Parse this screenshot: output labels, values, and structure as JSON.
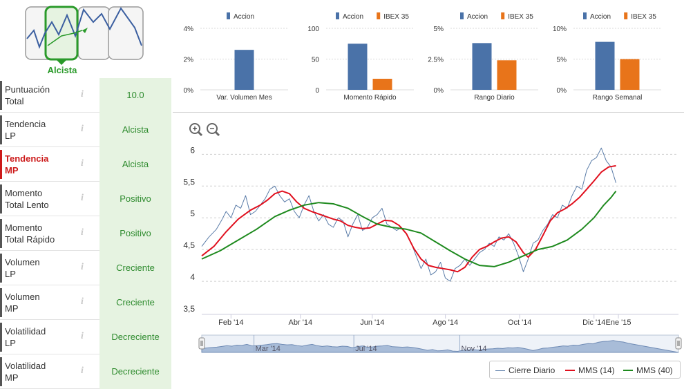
{
  "trend_badge": {
    "label": "Alcista",
    "icon": "trend-chart-icon"
  },
  "indicators": [
    {
      "label_1": "Puntuación",
      "label_2": "Total",
      "value": "10.0",
      "active": false
    },
    {
      "label_1": "Tendencia",
      "label_2": "LP",
      "value": "Alcista",
      "active": false
    },
    {
      "label_1": "Tendencia",
      "label_2": "MP",
      "value": "Alcista",
      "active": true
    },
    {
      "label_1": "Momento",
      "label_2": "Total Lento",
      "value": "Positivo",
      "active": false
    },
    {
      "label_1": "Momento",
      "label_2": "Total Rápido",
      "value": "Positivo",
      "active": false
    },
    {
      "label_1": "Volumen",
      "label_2": "LP",
      "value": "Creciente",
      "active": false
    },
    {
      "label_1": "Volumen",
      "label_2": "MP",
      "value": "Creciente",
      "active": false
    },
    {
      "label_1": "Volatilidad",
      "label_2": "LP",
      "value": "Decreciente",
      "active": false
    },
    {
      "label_1": "Volatilidad",
      "label_2": "MP",
      "value": "Decreciente",
      "active": false
    }
  ],
  "info_glyph": "i",
  "colors": {
    "accion": "#4a72a8",
    "ibex": "#e8741a",
    "green_text": "#2e8b2e",
    "green_bg": "#e6f3e1",
    "active_red": "#cc1a1a",
    "mms14": "#e0101e",
    "mms40": "#1e8a1e",
    "cierre": "#5a7ca8"
  },
  "chart_data": [
    {
      "type": "bar",
      "legend": [
        "Accion"
      ],
      "categories": [
        "Var. Volumen Mes"
      ],
      "series": [
        {
          "name": "Accion",
          "values": [
            2.6
          ]
        }
      ],
      "y_ticks": [
        "4%",
        "2%",
        "0%"
      ],
      "ylim": [
        0,
        4
      ]
    },
    {
      "type": "bar",
      "legend": [
        "Accion",
        "IBEX 35"
      ],
      "categories": [
        "Momento Rápido"
      ],
      "series": [
        {
          "name": "Accion",
          "values": [
            75
          ]
        },
        {
          "name": "IBEX 35",
          "values": [
            18
          ]
        }
      ],
      "y_ticks": [
        "100",
        "50",
        "0"
      ],
      "ylim": [
        0,
        100
      ]
    },
    {
      "type": "bar",
      "legend": [
        "Accion",
        "IBEX 35"
      ],
      "categories": [
        "Rango Diario"
      ],
      "series": [
        {
          "name": "Accion",
          "values": [
            3.8
          ]
        },
        {
          "name": "IBEX 35",
          "values": [
            2.4
          ]
        }
      ],
      "y_ticks": [
        "5%",
        "2.5%",
        "0%"
      ],
      "ylim": [
        0,
        5
      ]
    },
    {
      "type": "bar",
      "legend": [
        "Accion",
        "IBEX 35"
      ],
      "categories": [
        "Rango Semanal"
      ],
      "series": [
        {
          "name": "Accion",
          "values": [
            7.8
          ]
        },
        {
          "name": "IBEX 35",
          "values": [
            5.0
          ]
        }
      ],
      "y_ticks": [
        "10%",
        "5%",
        "0%"
      ],
      "ylim": [
        0,
        10
      ]
    },
    {
      "type": "line",
      "x_ticks": [
        "Feb '14",
        "Abr '14",
        "Jun '14",
        "Ago '14",
        "Oct '14",
        "Dic '14",
        "Ene '15"
      ],
      "y_ticks": [
        "6",
        "5,5",
        "5",
        "4,5",
        "4",
        "3,5"
      ],
      "ylim": [
        3.5,
        6.2
      ],
      "x_range": [
        0,
        380
      ],
      "x_tick_pos": [
        24,
        81,
        140,
        200,
        261,
        322,
        342
      ],
      "series": [
        {
          "name": "Cierre Diario",
          "values": [
            [
              0,
              4.55
            ],
            [
              6,
              4.7
            ],
            [
              12,
              4.82
            ],
            [
              16,
              4.95
            ],
            [
              20,
              5.1
            ],
            [
              24,
              5.0
            ],
            [
              28,
              5.2
            ],
            [
              32,
              5.15
            ],
            [
              36,
              5.35
            ],
            [
              40,
              5.05
            ],
            [
              44,
              5.1
            ],
            [
              48,
              5.2
            ],
            [
              52,
              5.3
            ],
            [
              56,
              5.45
            ],
            [
              60,
              5.5
            ],
            [
              64,
              5.35
            ],
            [
              68,
              5.25
            ],
            [
              72,
              5.3
            ],
            [
              76,
              5.1
            ],
            [
              80,
              5.0
            ],
            [
              84,
              5.2
            ],
            [
              88,
              5.35
            ],
            [
              92,
              5.1
            ],
            [
              96,
              4.95
            ],
            [
              100,
              5.05
            ],
            [
              104,
              4.9
            ],
            [
              108,
              4.85
            ],
            [
              112,
              5.0
            ],
            [
              116,
              4.95
            ],
            [
              120,
              4.7
            ],
            [
              124,
              4.9
            ],
            [
              128,
              5.05
            ],
            [
              132,
              4.8
            ],
            [
              136,
              4.85
            ],
            [
              140,
              5.0
            ],
            [
              144,
              5.05
            ],
            [
              148,
              5.15
            ],
            [
              152,
              4.9
            ],
            [
              156,
              4.85
            ],
            [
              160,
              4.8
            ],
            [
              164,
              4.85
            ],
            [
              168,
              4.75
            ],
            [
              172,
              4.6
            ],
            [
              176,
              4.4
            ],
            [
              180,
              4.2
            ],
            [
              184,
              4.35
            ],
            [
              188,
              4.1
            ],
            [
              192,
              4.15
            ],
            [
              196,
              4.3
            ],
            [
              200,
              4.05
            ],
            [
              204,
              4.0
            ],
            [
              208,
              4.2
            ],
            [
              212,
              4.25
            ],
            [
              216,
              4.35
            ],
            [
              220,
              4.25
            ],
            [
              224,
              4.35
            ],
            [
              228,
              4.45
            ],
            [
              232,
              4.5
            ],
            [
              236,
              4.6
            ],
            [
              240,
              4.55
            ],
            [
              244,
              4.7
            ],
            [
              248,
              4.65
            ],
            [
              252,
              4.75
            ],
            [
              256,
              4.6
            ],
            [
              260,
              4.4
            ],
            [
              264,
              4.15
            ],
            [
              268,
              4.35
            ],
            [
              272,
              4.6
            ],
            [
              276,
              4.65
            ],
            [
              280,
              4.8
            ],
            [
              284,
              4.9
            ],
            [
              288,
              5.05
            ],
            [
              292,
              5.0
            ],
            [
              296,
              5.2
            ],
            [
              300,
              5.15
            ],
            [
              304,
              5.35
            ],
            [
              308,
              5.5
            ],
            [
              312,
              5.45
            ],
            [
              316,
              5.75
            ],
            [
              320,
              5.9
            ],
            [
              324,
              5.95
            ],
            [
              328,
              6.1
            ],
            [
              332,
              5.9
            ],
            [
              336,
              5.8
            ],
            [
              340,
              5.55
            ]
          ]
        },
        {
          "name": "MMS (14)",
          "values": [
            [
              0,
              4.4
            ],
            [
              10,
              4.55
            ],
            [
              20,
              4.78
            ],
            [
              30,
              4.98
            ],
            [
              40,
              5.12
            ],
            [
              48,
              5.2
            ],
            [
              54,
              5.28
            ],
            [
              60,
              5.38
            ],
            [
              66,
              5.42
            ],
            [
              72,
              5.38
            ],
            [
              78,
              5.25
            ],
            [
              84,
              5.15
            ],
            [
              90,
              5.1
            ],
            [
              96,
              5.06
            ],
            [
              102,
              5.02
            ],
            [
              108,
              4.98
            ],
            [
              114,
              4.95
            ],
            [
              120,
              4.88
            ],
            [
              126,
              4.85
            ],
            [
              132,
              4.83
            ],
            [
              138,
              4.84
            ],
            [
              144,
              4.9
            ],
            [
              150,
              4.96
            ],
            [
              156,
              4.95
            ],
            [
              162,
              4.88
            ],
            [
              168,
              4.75
            ],
            [
              174,
              4.52
            ],
            [
              180,
              4.35
            ],
            [
              186,
              4.25
            ],
            [
              192,
              4.22
            ],
            [
              198,
              4.2
            ],
            [
              204,
              4.18
            ],
            [
              210,
              4.15
            ],
            [
              216,
              4.22
            ],
            [
              222,
              4.38
            ],
            [
              228,
              4.5
            ],
            [
              234,
              4.55
            ],
            [
              240,
              4.62
            ],
            [
              246,
              4.68
            ],
            [
              252,
              4.7
            ],
            [
              258,
              4.62
            ],
            [
              264,
              4.45
            ],
            [
              268,
              4.38
            ],
            [
              274,
              4.5
            ],
            [
              280,
              4.72
            ],
            [
              286,
              4.95
            ],
            [
              292,
              5.08
            ],
            [
              298,
              5.14
            ],
            [
              304,
              5.22
            ],
            [
              310,
              5.32
            ],
            [
              316,
              5.45
            ],
            [
              322,
              5.58
            ],
            [
              328,
              5.72
            ],
            [
              334,
              5.8
            ],
            [
              340,
              5.82
            ]
          ]
        },
        {
          "name": "MMS (40)",
          "values": [
            [
              0,
              4.35
            ],
            [
              15,
              4.48
            ],
            [
              30,
              4.65
            ],
            [
              45,
              4.82
            ],
            [
              60,
              5.02
            ],
            [
              72,
              5.12
            ],
            [
              84,
              5.2
            ],
            [
              96,
              5.24
            ],
            [
              108,
              5.22
            ],
            [
              120,
              5.15
            ],
            [
              132,
              5.02
            ],
            [
              144,
              4.9
            ],
            [
              156,
              4.85
            ],
            [
              168,
              4.82
            ],
            [
              180,
              4.76
            ],
            [
              192,
              4.62
            ],
            [
              204,
              4.48
            ],
            [
              216,
              4.35
            ],
            [
              228,
              4.25
            ],
            [
              240,
              4.23
            ],
            [
              252,
              4.3
            ],
            [
              264,
              4.4
            ],
            [
              276,
              4.5
            ],
            [
              288,
              4.55
            ],
            [
              300,
              4.65
            ],
            [
              312,
              4.82
            ],
            [
              322,
              5.0
            ],
            [
              330,
              5.2
            ],
            [
              336,
              5.32
            ],
            [
              340,
              5.42
            ]
          ]
        }
      ]
    }
  ],
  "navigator": {
    "labels": [
      "Mar '14",
      "Jul '14",
      "Nov '14"
    ]
  },
  "legend": {
    "items": [
      "Cierre Diario",
      "MMS (14)",
      "MMS (40)"
    ]
  }
}
